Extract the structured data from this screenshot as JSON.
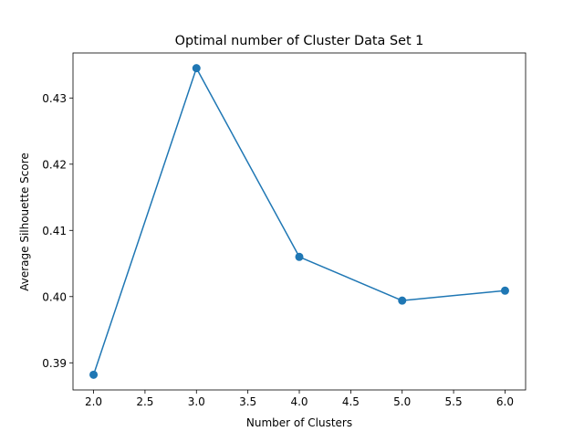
{
  "chart_data": {
    "type": "line",
    "title": "Optimal number of Cluster Data Set 1",
    "xlabel": "Number of Clusters",
    "ylabel": "Average Silhouette Score",
    "x": [
      2,
      3,
      4,
      5,
      6
    ],
    "series": [
      {
        "values": [
          0.3882,
          0.4345,
          0.406,
          0.3994,
          0.4009
        ],
        "color": "#1f77b4",
        "marker": "circle"
      }
    ],
    "xlim": [
      1.8,
      6.2
    ],
    "ylim": [
      0.3859,
      0.4368
    ],
    "xticks": [
      2.0,
      2.5,
      3.0,
      3.5,
      4.0,
      4.5,
      5.0,
      5.5,
      6.0
    ],
    "xtick_labels": [
      "2.0",
      "2.5",
      "3.0",
      "3.5",
      "4.0",
      "4.5",
      "5.0",
      "5.5",
      "6.0"
    ],
    "yticks": [
      0.39,
      0.4,
      0.41,
      0.42,
      0.43
    ],
    "ytick_labels": [
      "0.39",
      "0.40",
      "0.41",
      "0.42",
      "0.43"
    ],
    "grid": false,
    "legend": "none"
  }
}
